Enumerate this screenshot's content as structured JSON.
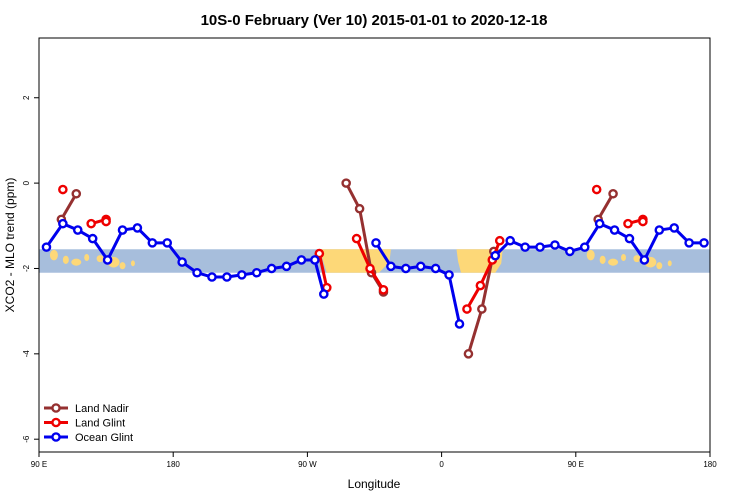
{
  "chart_data": {
    "type": "line",
    "title": "10S-0 February (Ver 10)   2015-01-01 to 2020-12-18",
    "xlabel": "Longitude",
    "ylabel": "XCO2 - MLO trend (ppm)",
    "xlim": [
      90,
      540
    ],
    "ylim": [
      -6.3,
      3.4
    ],
    "xticks": [
      {
        "value": 90,
        "label": "90 E"
      },
      {
        "value": 180,
        "label": "180"
      },
      {
        "value": 270,
        "label": "90 W"
      },
      {
        "value": 360,
        "label": "0"
      },
      {
        "value": 450,
        "label": "90 E"
      },
      {
        "value": 540,
        "label": "180"
      }
    ],
    "yticks": [
      {
        "value": 2,
        "label": "2"
      },
      {
        "value": 0,
        "label": "0"
      },
      {
        "value": -2,
        "label": "-2"
      },
      {
        "value": -4,
        "label": "-4"
      },
      {
        "value": -6,
        "label": "-6"
      }
    ],
    "grid": false,
    "legend_position": "bottom-left",
    "latitude_band": {
      "y_top": -1.55,
      "y_bottom": -2.1,
      "ocean_color": "#a7bedc",
      "land_color": "#fdd878"
    },
    "series": [
      {
        "name": "Land Nadir",
        "color": "#953030",
        "points": [
          [
            105,
            -0.85
          ],
          [
            115,
            -0.25
          ],
          [
            null,
            null
          ],
          [
            296,
            0.0
          ],
          [
            305,
            -0.6
          ],
          [
            313,
            -2.1
          ],
          [
            321,
            -2.55
          ],
          [
            null,
            null
          ],
          [
            378,
            -4.0
          ],
          [
            387,
            -2.95
          ],
          [
            395,
            -1.6
          ],
          [
            null,
            null
          ],
          [
            465,
            -0.85
          ],
          [
            475,
            -0.25
          ]
        ]
      },
      {
        "name": "Land Glint",
        "color": "#ee0000",
        "points": [
          [
            106,
            -0.15
          ],
          [
            null,
            null
          ],
          [
            125,
            -0.95
          ],
          [
            135,
            -0.85
          ],
          [
            135,
            -0.9
          ],
          [
            null,
            null
          ],
          [
            278,
            -1.65
          ],
          [
            283,
            -2.45
          ],
          [
            null,
            null
          ],
          [
            303,
            -1.3
          ],
          [
            312,
            -2.0
          ],
          [
            321,
            -2.5
          ],
          [
            null,
            null
          ],
          [
            377,
            -2.95
          ],
          [
            386,
            -2.4
          ],
          [
            394,
            -1.8
          ],
          [
            399,
            -1.35
          ],
          [
            null,
            null
          ],
          [
            464,
            -0.15
          ],
          [
            null,
            null
          ],
          [
            485,
            -0.95
          ],
          [
            495,
            -0.85
          ],
          [
            495,
            -0.9
          ]
        ]
      },
      {
        "name": "Ocean Glint",
        "color": "#0000ee",
        "points": [
          [
            95,
            -1.5
          ],
          [
            106,
            -0.95
          ],
          [
            116,
            -1.1
          ],
          [
            126,
            -1.3
          ],
          [
            136,
            -1.8
          ],
          [
            146,
            -1.1
          ],
          [
            156,
            -1.05
          ],
          [
            166,
            -1.4
          ],
          [
            176,
            -1.4
          ],
          [
            186,
            -1.85
          ],
          [
            196,
            -2.1
          ],
          [
            206,
            -2.2
          ],
          [
            216,
            -2.2
          ],
          [
            226,
            -2.15
          ],
          [
            236,
            -2.1
          ],
          [
            246,
            -2.0
          ],
          [
            256,
            -1.95
          ],
          [
            266,
            -1.8
          ],
          [
            275,
            -1.8
          ],
          [
            281,
            -2.6
          ],
          [
            null,
            null
          ],
          [
            316,
            -1.4
          ],
          [
            326,
            -1.95
          ],
          [
            336,
            -2.0
          ],
          [
            346,
            -1.95
          ],
          [
            356,
            -2.0
          ],
          [
            365,
            -2.15
          ],
          [
            372,
            -3.3
          ],
          [
            null,
            null
          ],
          [
            396,
            -1.7
          ],
          [
            406,
            -1.35
          ],
          [
            416,
            -1.5
          ],
          [
            426,
            -1.5
          ],
          [
            436,
            -1.45
          ],
          [
            446,
            -1.6
          ],
          [
            456,
            -1.5
          ],
          [
            466,
            -0.95
          ],
          [
            476,
            -1.1
          ],
          [
            486,
            -1.3
          ],
          [
            496,
            -1.8
          ],
          [
            506,
            -1.1
          ],
          [
            516,
            -1.05
          ],
          [
            526,
            -1.4
          ],
          [
            536,
            -1.4
          ]
        ]
      }
    ]
  }
}
